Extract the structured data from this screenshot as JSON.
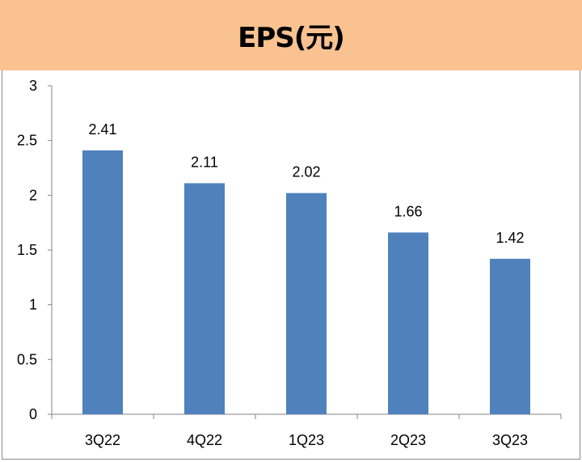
{
  "chart_data": {
    "type": "bar",
    "title": "EPS(元)",
    "categories": [
      "3Q22",
      "4Q22",
      "1Q23",
      "2Q23",
      "3Q23"
    ],
    "values": [
      2.41,
      2.11,
      2.02,
      1.66,
      1.42
    ],
    "data_labels": [
      "2.41",
      "2.11",
      "2.02",
      "1.66",
      "1.42"
    ],
    "xlabel": "",
    "ylabel": "",
    "ylim": [
      0,
      3
    ],
    "yticks": [
      "0",
      "0.5",
      "1",
      "1.5",
      "2",
      "2.5",
      "3"
    ],
    "grid": false,
    "legend": "none",
    "colors": {
      "bar": "#4f81bd",
      "header": "#f9c290"
    }
  }
}
